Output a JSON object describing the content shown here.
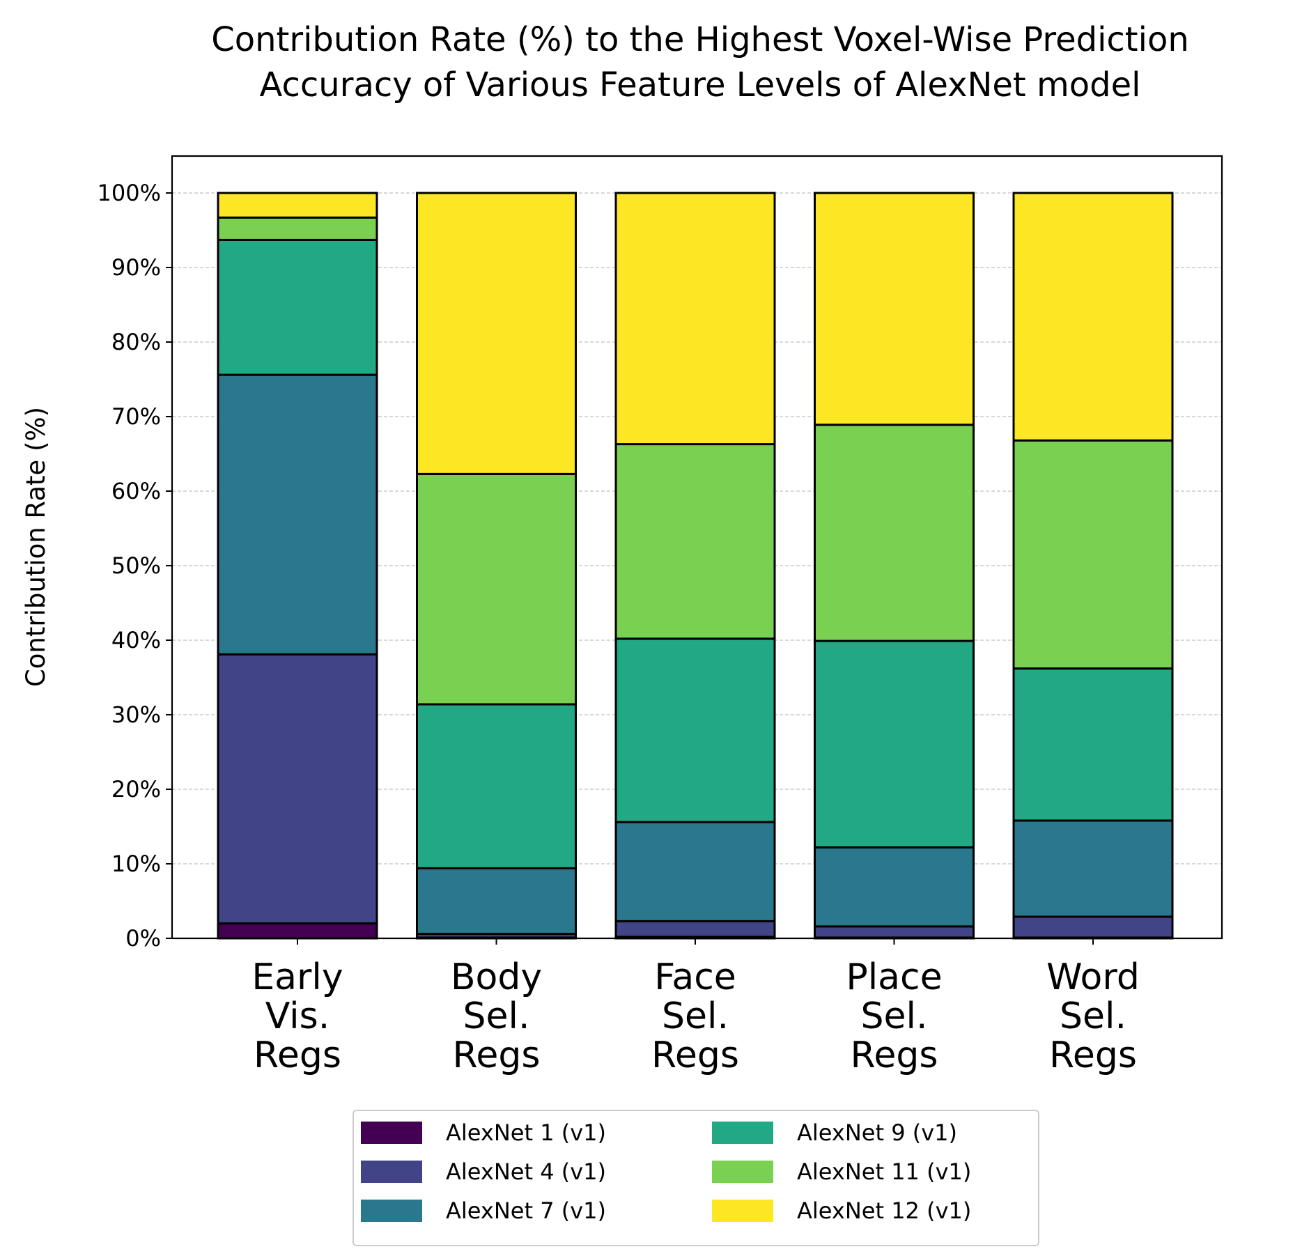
{
  "chart_data": {
    "type": "bar",
    "stacked": true,
    "title": [
      "Contribution Rate (%) to the Highest Voxel-Wise Prediction",
      "Accuracy of Various Feature Levels of AlexNet model"
    ],
    "xlabel": "",
    "ylabel": "Contribution Rate (%)",
    "ylim": [
      0,
      105
    ],
    "yticks": [
      "0%",
      "10%",
      "20%",
      "30%",
      "40%",
      "50%",
      "60%",
      "70%",
      "80%",
      "90%",
      "100%"
    ],
    "grid": "horizontal dashed",
    "legend_position": "bottom-center",
    "categories": [
      [
        "Early",
        "Vis.",
        "Regs"
      ],
      [
        "Body",
        "Sel.",
        "Regs"
      ],
      [
        "Face",
        "Sel.",
        "Regs"
      ],
      [
        "Place",
        "Sel.",
        "Regs"
      ],
      [
        "Word",
        "Sel.",
        "Regs"
      ]
    ],
    "series": [
      {
        "name": "AlexNet 1 (v1)",
        "color": "#440154",
        "values": [
          2.0,
          0.1,
          0.2,
          0.1,
          0.1
        ]
      },
      {
        "name": "AlexNet 4 (v1)",
        "color": "#414487",
        "values": [
          36.1,
          0.5,
          2.1,
          1.5,
          2.8
        ]
      },
      {
        "name": "AlexNet 7 (v1)",
        "color": "#2a788e",
        "values": [
          37.5,
          8.8,
          13.3,
          10.6,
          12.9
        ]
      },
      {
        "name": "AlexNet 9 (v1)",
        "color": "#22a884",
        "values": [
          18.1,
          22.0,
          24.6,
          27.7,
          20.4
        ]
      },
      {
        "name": "AlexNet 11 (v1)",
        "color": "#7ad151",
        "values": [
          3.0,
          30.9,
          26.1,
          29.0,
          30.6
        ]
      },
      {
        "name": "AlexNet 12 (v1)",
        "color": "#fde725",
        "values": [
          3.3,
          37.7,
          33.7,
          31.1,
          33.2
        ]
      }
    ]
  }
}
